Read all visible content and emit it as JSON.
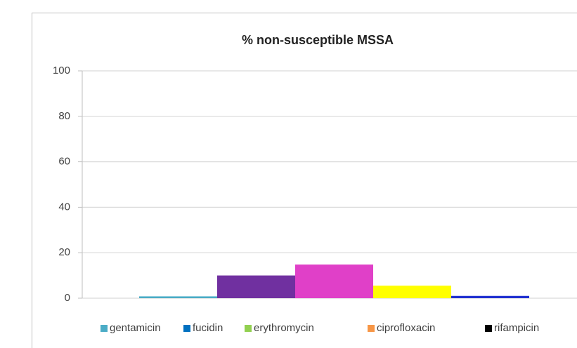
{
  "chart_data": {
    "type": "bar",
    "title": "% non-susceptible MSSA",
    "categories": [
      null
    ],
    "series": [
      {
        "name": "gentamicin",
        "color": "#4bacc6",
        "bar_color": "#4bacc6",
        "values": [
          0.8
        ]
      },
      {
        "name": "fucidin",
        "color": "#0070c0",
        "bar_color": "#7030a0",
        "values": [
          10
        ]
      },
      {
        "name": "erythromycin",
        "color": "#92d050",
        "bar_color": "#e040c8",
        "values": [
          14.8
        ]
      },
      {
        "name": "ciprofloxacin",
        "color": "#f79646",
        "bar_color": "#ffff00",
        "values": [
          5.5
        ]
      },
      {
        "name": "rifampicin",
        "color": "#000000",
        "bar_color": "#2030d0",
        "values": [
          1
        ]
      }
    ],
    "ylim": [
      0,
      100
    ],
    "yticks": [
      0,
      20,
      40,
      60,
      80,
      100
    ],
    "grid": true,
    "legend": "bottom"
  }
}
